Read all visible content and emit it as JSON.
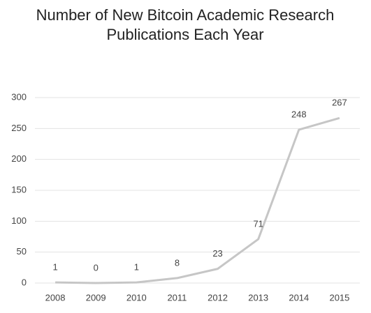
{
  "chart_data": {
    "type": "line",
    "title": "Number of New Bitcoin Academic Research Publications Each Year",
    "categories": [
      "2008",
      "2009",
      "2010",
      "2011",
      "2012",
      "2013",
      "2014",
      "2015"
    ],
    "values": [
      1,
      0,
      1,
      8,
      23,
      71,
      248,
      267
    ],
    "color": "#c6c6c6",
    "ylim": [
      0,
      300
    ],
    "yticks": [
      0,
      50,
      100,
      150,
      200,
      250,
      300
    ],
    "grid": true
  }
}
